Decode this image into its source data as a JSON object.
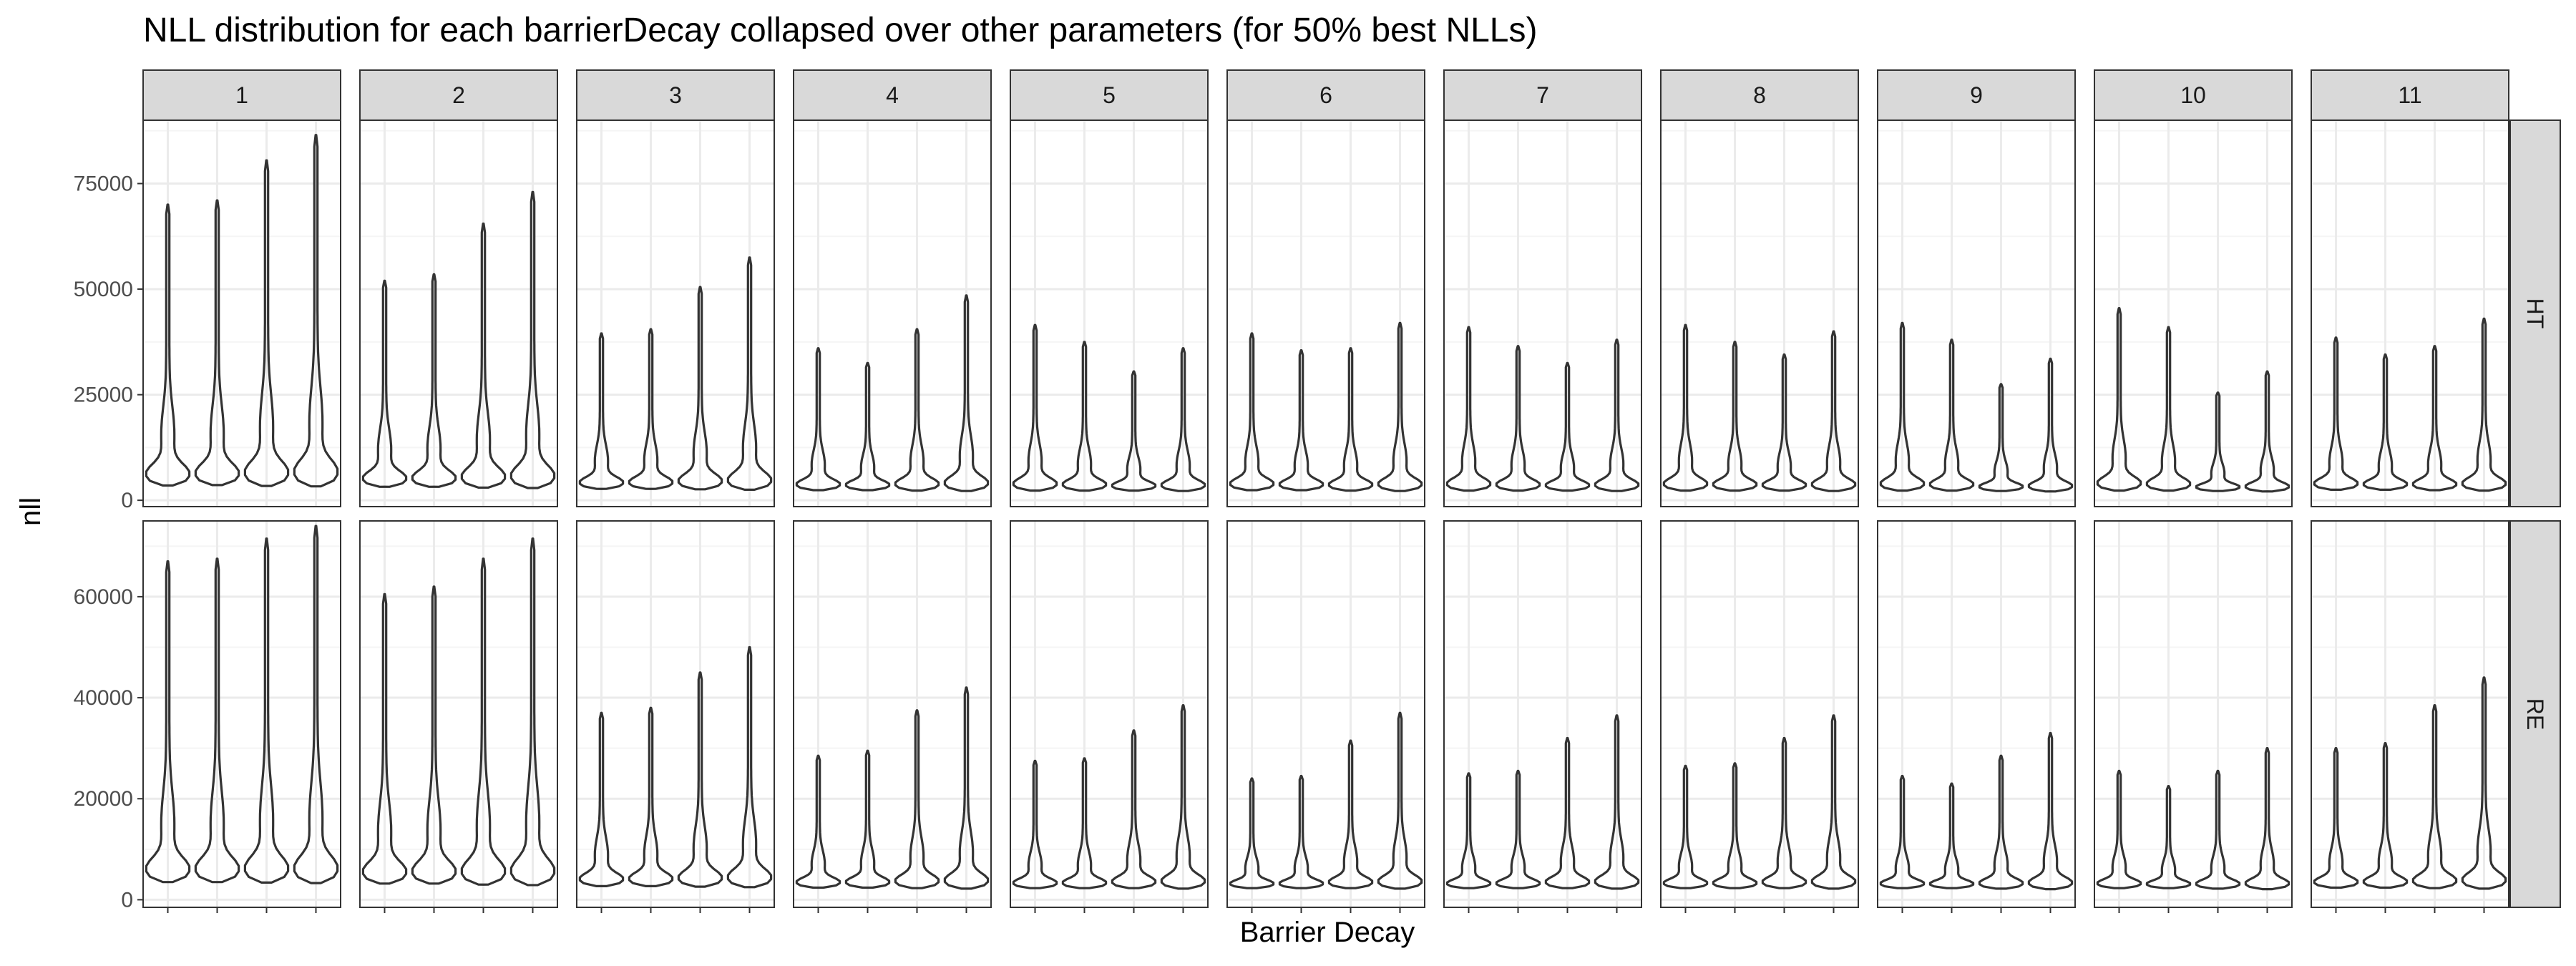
{
  "chart_data": {
    "type": "violin",
    "title": "NLL distribution for each barrierDecay collapsed over other parameters (for 50% best NLLs)",
    "xlabel": "Barrier Decay",
    "ylabel": "nll",
    "facet_columns": [
      "1",
      "2",
      "3",
      "4",
      "5",
      "6",
      "7",
      "8",
      "9",
      "10",
      "11"
    ],
    "facet_rows": [
      "HT",
      "RE"
    ],
    "violins_per_panel": 4,
    "x_ticks_labeled": false,
    "grid": true,
    "rows": [
      {
        "name": "HT",
        "ylim": [
          -1500,
          90000
        ],
        "y_ticks": [
          0,
          25000,
          50000,
          75000
        ],
        "y_tick_labels": [
          "0",
          "25000",
          "50000",
          "75000"
        ],
        "max_values": [
          [
            70000,
            71000,
            80500,
            86500
          ],
          [
            52000,
            53500,
            65500,
            73000
          ],
          [
            39500,
            40500,
            50500,
            57500
          ],
          [
            36000,
            32500,
            40500,
            48500
          ],
          [
            41500,
            37500,
            30500,
            36000
          ],
          [
            39500,
            35500,
            36000,
            42000
          ],
          [
            41000,
            36500,
            32500,
            38000
          ],
          [
            41500,
            37500,
            34500,
            40000
          ],
          [
            42000,
            38000,
            27500,
            33500
          ],
          [
            45500,
            41000,
            25500,
            30500
          ],
          [
            38500,
            34500,
            36500,
            43000
          ]
        ],
        "min_values": [
          [
            3500,
            3600,
            3400,
            3300
          ],
          [
            3200,
            3200,
            3000,
            2900
          ],
          [
            2700,
            2700,
            2600,
            2500
          ],
          [
            2400,
            2400,
            2300,
            2200
          ],
          [
            2300,
            2300,
            2300,
            2200
          ],
          [
            2400,
            2400,
            2300,
            2200
          ],
          [
            2300,
            2300,
            2300,
            2200
          ],
          [
            2300,
            2300,
            2300,
            2200
          ],
          [
            2300,
            2300,
            2200,
            2100
          ],
          [
            2300,
            2300,
            2200,
            2100
          ],
          [
            2500,
            2500,
            2400,
            2300
          ]
        ]
      },
      {
        "name": "RE",
        "ylim": [
          -1500,
          75000
        ],
        "y_ticks": [
          0,
          20000,
          40000,
          60000
        ],
        "y_tick_labels": [
          "0",
          "20000",
          "40000",
          "60000"
        ],
        "max_values": [
          [
            67000,
            67500,
            71500,
            74000
          ],
          [
            60500,
            62000,
            67500,
            71500
          ],
          [
            37000,
            38000,
            45000,
            50000
          ],
          [
            28500,
            29500,
            37500,
            42000
          ],
          [
            27500,
            28000,
            33500,
            38500
          ],
          [
            24000,
            24500,
            31500,
            37000
          ],
          [
            25000,
            25500,
            32000,
            36500
          ],
          [
            26500,
            27000,
            32000,
            36500
          ],
          [
            24500,
            23000,
            28500,
            33000
          ],
          [
            25500,
            22500,
            25500,
            30000
          ],
          [
            30000,
            31000,
            38500,
            44000
          ]
        ],
        "min_values": [
          [
            3500,
            3500,
            3400,
            3300
          ],
          [
            3200,
            3200,
            3000,
            2900
          ],
          [
            2700,
            2700,
            2600,
            2500
          ],
          [
            2400,
            2400,
            2300,
            2200
          ],
          [
            2300,
            2300,
            2300,
            2200
          ],
          [
            2300,
            2300,
            2300,
            2200
          ],
          [
            2300,
            2300,
            2300,
            2200
          ],
          [
            2300,
            2300,
            2300,
            2200
          ],
          [
            2300,
            2300,
            2200,
            2100
          ],
          [
            2300,
            2300,
            2200,
            2100
          ],
          [
            2400,
            2400,
            2300,
            2200
          ]
        ]
      }
    ]
  },
  "colors": {
    "panel_border": "#333333",
    "panel_background": "#ffffff",
    "grid_major": "#ebebeb",
    "grid_minor": "#f5f5f5",
    "strip_fill": "#d9d9d9",
    "violin_outline": "#333333",
    "tick_text": "#4d4d4d",
    "text": "#000000"
  }
}
